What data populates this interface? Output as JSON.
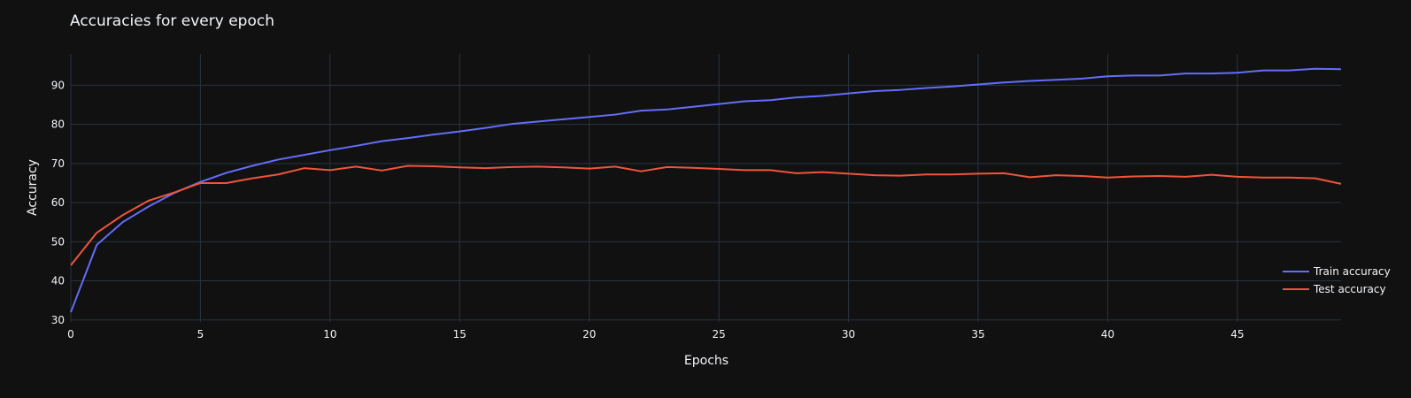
{
  "chart_data": {
    "type": "line",
    "title": "Accuracies for every epoch",
    "xlabel": "Epochs",
    "ylabel": "Accuracy",
    "xlim": [
      0,
      49
    ],
    "ylim": [
      29.5,
      98
    ],
    "x_ticks": [
      0,
      5,
      10,
      15,
      20,
      25,
      30,
      35,
      40,
      45
    ],
    "y_ticks": [
      30,
      40,
      50,
      60,
      70,
      80,
      90
    ],
    "grid": true,
    "legend_position": "bottom-right",
    "background": "#111111",
    "grid_color": "#283442",
    "x": [
      0,
      1,
      2,
      3,
      4,
      5,
      6,
      7,
      8,
      9,
      10,
      11,
      12,
      13,
      14,
      15,
      16,
      17,
      18,
      19,
      20,
      21,
      22,
      23,
      24,
      25,
      26,
      27,
      28,
      29,
      30,
      31,
      32,
      33,
      34,
      35,
      36,
      37,
      38,
      39,
      40,
      41,
      42,
      43,
      44,
      45,
      46,
      47,
      48,
      49
    ],
    "series": [
      {
        "name": "Train accuracy",
        "color": "#636efa",
        "values": [
          32.0,
          49.2,
          55.0,
          59.0,
          62.5,
          65.3,
          67.6,
          69.4,
          71.0,
          72.2,
          73.4,
          74.5,
          75.7,
          76.5,
          77.4,
          78.2,
          79.1,
          80.1,
          80.7,
          81.3,
          81.9,
          82.5,
          83.5,
          83.8,
          84.5,
          85.2,
          85.9,
          86.2,
          86.9,
          87.3,
          87.9,
          88.5,
          88.8,
          89.3,
          89.7,
          90.2,
          90.7,
          91.1,
          91.4,
          91.7,
          92.3,
          92.5,
          92.5,
          93.0,
          93.0,
          93.2,
          93.8,
          93.8,
          94.2,
          94.1
        ]
      },
      {
        "name": "Test accuracy",
        "color": "#ef553b",
        "values": [
          44.0,
          52.3,
          56.8,
          60.5,
          62.6,
          65.0,
          65.0,
          66.2,
          67.2,
          68.8,
          68.3,
          69.2,
          68.2,
          69.4,
          69.3,
          69.0,
          68.8,
          69.1,
          69.2,
          69.0,
          68.7,
          69.2,
          68.0,
          69.1,
          68.9,
          68.6,
          68.3,
          68.3,
          67.5,
          67.8,
          67.4,
          67.0,
          66.9,
          67.2,
          67.2,
          67.4,
          67.5,
          66.5,
          67.0,
          66.8,
          66.4,
          66.7,
          66.8,
          66.6,
          67.1,
          66.6,
          66.4,
          66.4,
          66.2,
          64.8
        ]
      }
    ]
  }
}
